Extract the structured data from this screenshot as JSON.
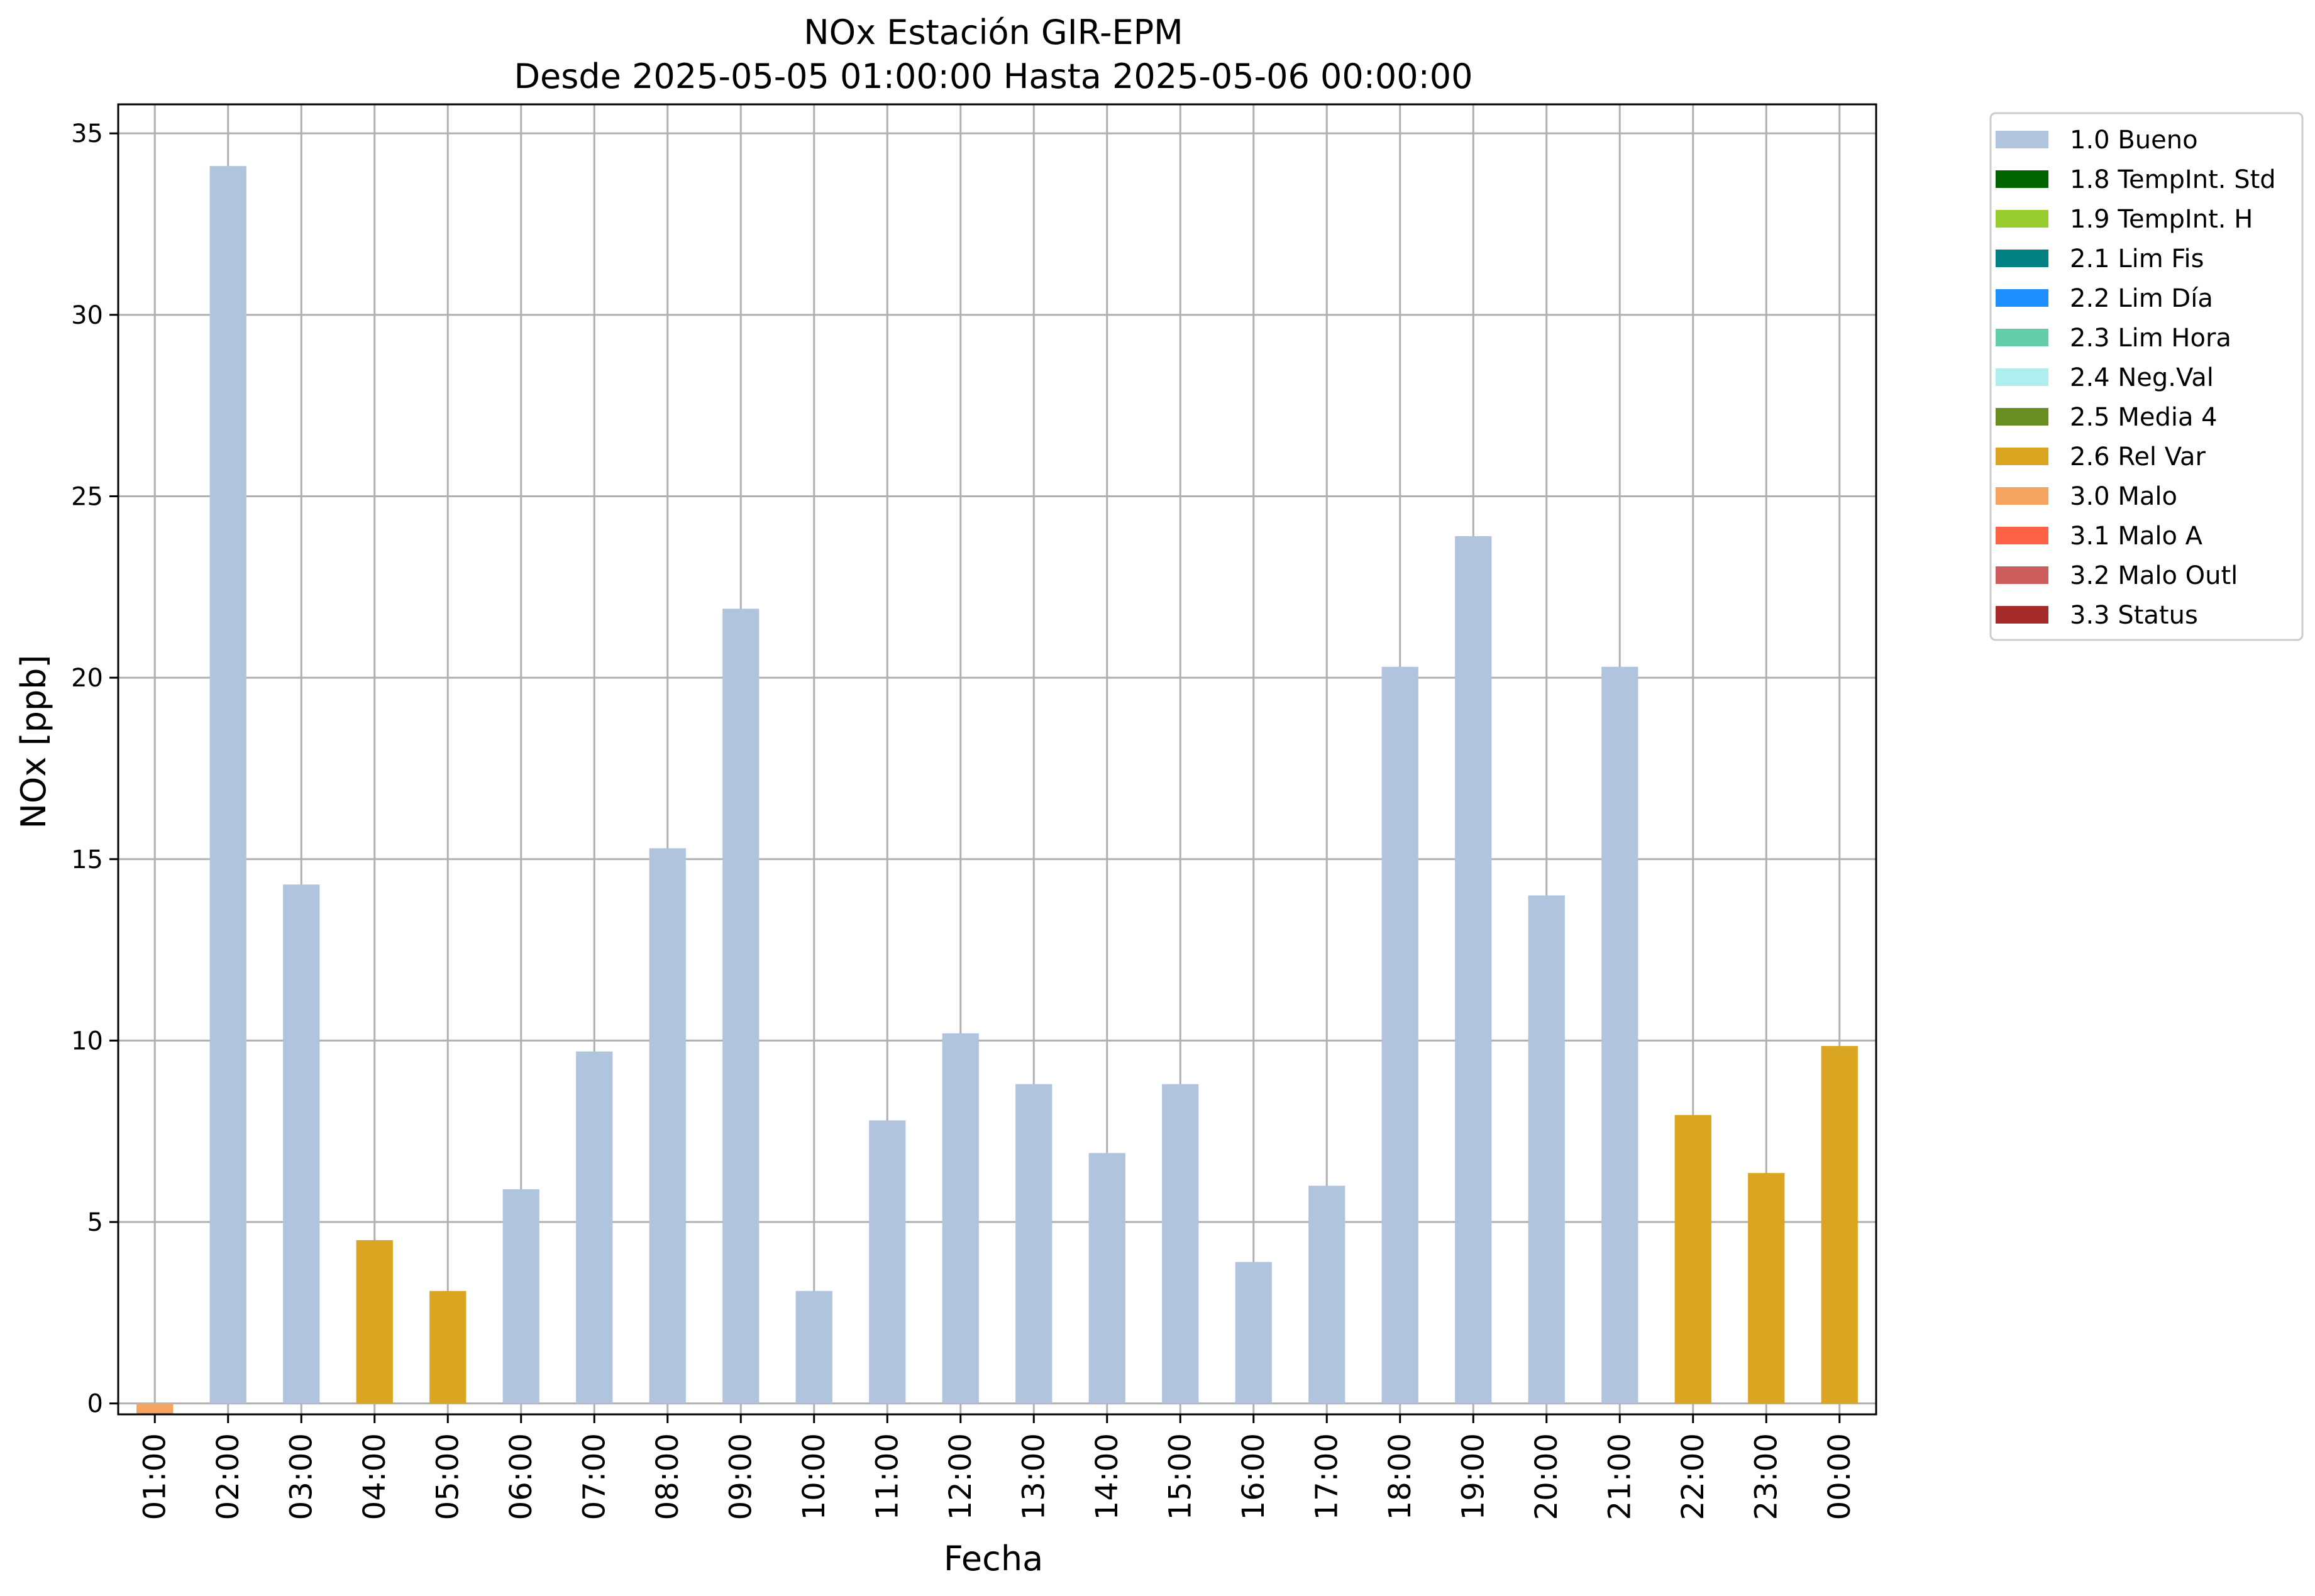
{
  "chart_data": {
    "type": "bar",
    "title": "NOx Estación GIR-EPM",
    "subtitle": "Desde 2025-05-05 01:00:00 Hasta 2025-05-06 00:00:00",
    "xlabel": "Fecha",
    "ylabel": "NOx [ppb]",
    "ylim": [
      -0.3,
      35.8
    ],
    "yticks": [
      0,
      5,
      10,
      15,
      20,
      25,
      30,
      35
    ],
    "grid": true,
    "legend_position": "outside-top-right",
    "categories": [
      "01:00",
      "02:00",
      "03:00",
      "04:00",
      "05:00",
      "06:00",
      "07:00",
      "08:00",
      "09:00",
      "10:00",
      "11:00",
      "12:00",
      "13:00",
      "14:00",
      "15:00",
      "16:00",
      "17:00",
      "18:00",
      "19:00",
      "20:00",
      "21:00",
      "22:00",
      "23:00",
      "00:00"
    ],
    "values": [
      -0.3,
      34.1,
      14.3,
      4.5,
      3.1,
      5.9,
      9.7,
      15.3,
      21.9,
      3.1,
      7.8,
      10.2,
      8.8,
      6.9,
      8.8,
      3.9,
      6.0,
      20.3,
      23.9,
      14.0,
      20.3,
      7.95,
      6.35,
      9.85
    ],
    "flags": [
      "3.0 Malo",
      "1.0 Bueno",
      "1.0 Bueno",
      "2.6 Rel Var",
      "2.6 Rel Var",
      "1.0 Bueno",
      "1.0 Bueno",
      "1.0 Bueno",
      "1.0 Bueno",
      "1.0 Bueno",
      "1.0 Bueno",
      "1.0 Bueno",
      "1.0 Bueno",
      "1.0 Bueno",
      "1.0 Bueno",
      "1.0 Bueno",
      "1.0 Bueno",
      "1.0 Bueno",
      "1.0 Bueno",
      "1.0 Bueno",
      "1.0 Bueno",
      "2.6 Rel Var",
      "2.6 Rel Var",
      "2.6 Rel Var"
    ],
    "legend": [
      {
        "label": "1.0 Bueno",
        "color": "#b0c4de"
      },
      {
        "label": "1.8 TempInt. Std",
        "color": "#006400"
      },
      {
        "label": "1.9 TempInt. H",
        "color": "#9acd32"
      },
      {
        "label": "2.1 Lim Fis",
        "color": "#008080"
      },
      {
        "label": "2.2 Lim Día",
        "color": "#1e90ff"
      },
      {
        "label": "2.3 Lim Hora",
        "color": "#66cdaa"
      },
      {
        "label": "2.4 Neg.Val",
        "color": "#afeeee"
      },
      {
        "label": "2.5 Media 4",
        "color": "#6b8e23"
      },
      {
        "label": "2.6 Rel Var",
        "color": "#daa520"
      },
      {
        "label": "3.0 Malo",
        "color": "#f4a460"
      },
      {
        "label": "3.1 Malo A",
        "color": "#ff6347"
      },
      {
        "label": "3.2 Malo Outl",
        "color": "#cd5c5c"
      },
      {
        "label": "3.3 Status",
        "color": "#a52a2a"
      }
    ]
  }
}
